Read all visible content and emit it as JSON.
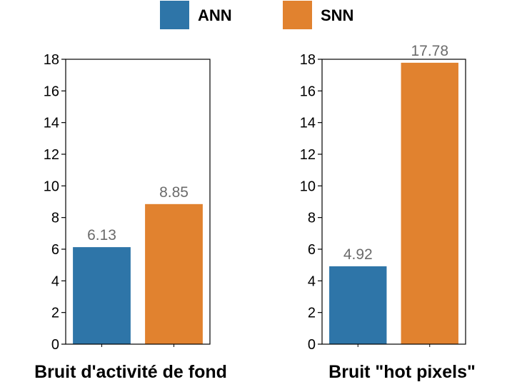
{
  "chart_data": [
    {
      "type": "bar",
      "title": "Bruit d'activité de fond",
      "categories": [
        "ANN",
        "SNN"
      ],
      "values": [
        6.13,
        8.85
      ],
      "value_labels": [
        "6.13",
        "8.85"
      ],
      "ylim": [
        0,
        18
      ],
      "yticks": [
        "0",
        "2",
        "4",
        "6",
        "8",
        "10",
        "12",
        "14",
        "16",
        "18"
      ],
      "grid": false
    },
    {
      "type": "bar",
      "title": "Bruit \"hot pixels\"",
      "categories": [
        "ANN",
        "SNN"
      ],
      "values": [
        4.92,
        17.78
      ],
      "value_labels": [
        "4.92",
        "17.78"
      ],
      "ylim": [
        0,
        18
      ],
      "yticks": [
        "0",
        "2",
        "4",
        "6",
        "8",
        "10",
        "12",
        "14",
        "16",
        "18"
      ],
      "grid": false
    }
  ],
  "legend": {
    "placement": "top-center",
    "items": [
      {
        "label": "ANN",
        "color": "#2e75a8"
      },
      {
        "label": "SNN",
        "color": "#e1822f"
      }
    ]
  }
}
